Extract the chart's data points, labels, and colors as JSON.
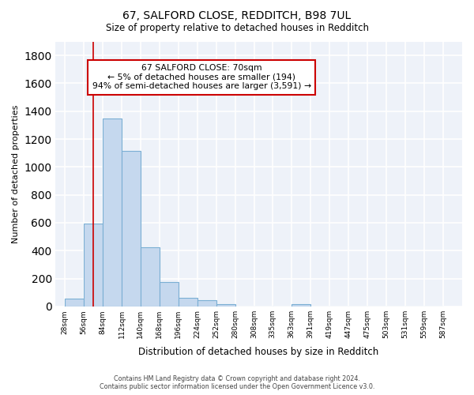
{
  "title1": "67, SALFORD CLOSE, REDDITCH, B98 7UL",
  "title2": "Size of property relative to detached houses in Redditch",
  "xlabel": "Distribution of detached houses by size in Redditch",
  "ylabel": "Number of detached properties",
  "annotation_line1": "67 SALFORD CLOSE: 70sqm",
  "annotation_line2": "← 5% of detached houses are smaller (194)",
  "annotation_line3": "94% of semi-detached houses are larger (3,591) →",
  "bar_left_edges": [
    28,
    56,
    84,
    112,
    140,
    168,
    196,
    224,
    252,
    280,
    308,
    335,
    363,
    391,
    419,
    447,
    475,
    503,
    531,
    559
  ],
  "bar_heights": [
    55,
    596,
    1345,
    1115,
    425,
    172,
    62,
    42,
    18,
    0,
    0,
    0,
    18,
    0,
    0,
    0,
    0,
    0,
    0,
    0
  ],
  "bin_width": 28,
  "x_tick_labels": [
    "28sqm",
    "56sqm",
    "84sqm",
    "112sqm",
    "140sqm",
    "168sqm",
    "196sqm",
    "224sqm",
    "252sqm",
    "280sqm",
    "308sqm",
    "335sqm",
    "363sqm",
    "391sqm",
    "419sqm",
    "447sqm",
    "475sqm",
    "503sqm",
    "531sqm",
    "559sqm",
    "587sqm"
  ],
  "x_tick_positions": [
    28,
    56,
    84,
    112,
    140,
    168,
    196,
    224,
    252,
    280,
    308,
    335,
    363,
    391,
    419,
    447,
    475,
    503,
    531,
    559,
    587
  ],
  "ylim": [
    0,
    1900
  ],
  "xlim": [
    14,
    615
  ],
  "bar_color": "#c5d8ee",
  "bar_edge_color": "#7bafd4",
  "vertical_line_x": 70,
  "vertical_line_color": "#cc0000",
  "annotation_box_color": "#cc0000",
  "background_color": "#eef2f9",
  "grid_color": "#ffffff",
  "footer_line1": "Contains HM Land Registry data © Crown copyright and database right 2024.",
  "footer_line2": "Contains public sector information licensed under the Open Government Licence v3.0."
}
